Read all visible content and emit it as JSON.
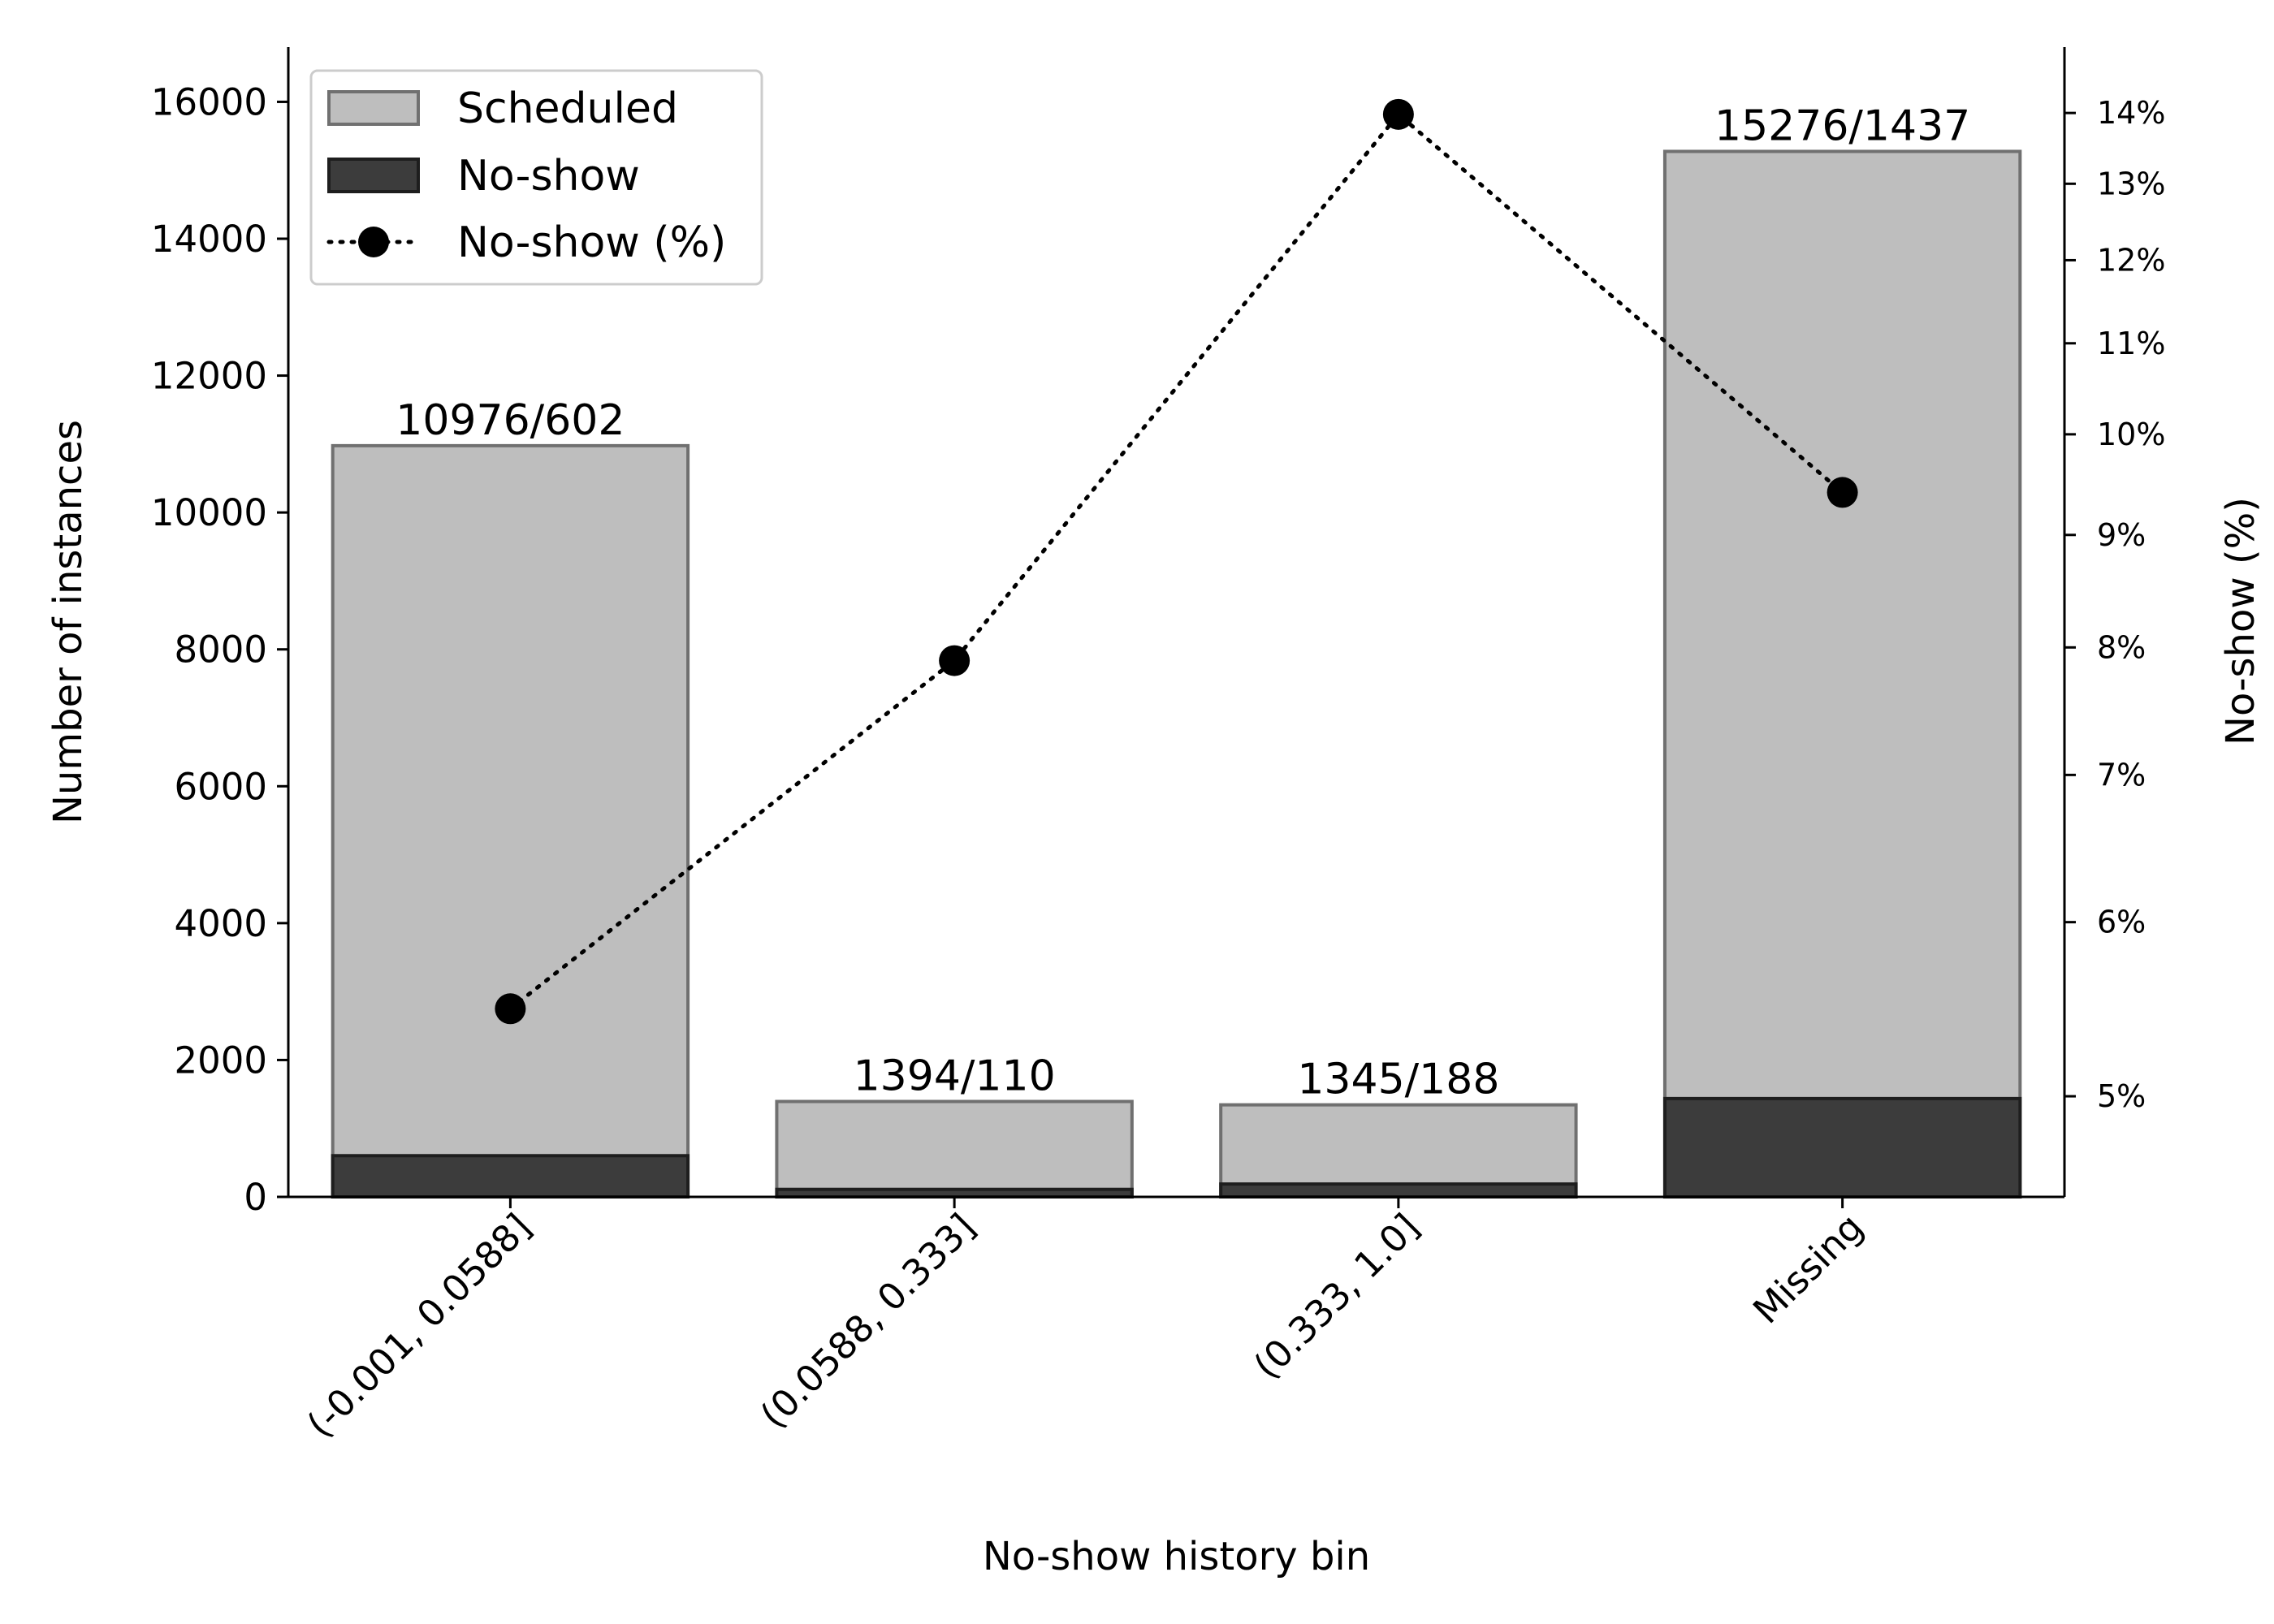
{
  "chart_data": {
    "type": "bar",
    "xlabel": "No-show history bin",
    "ylabel": "Number of instances",
    "y2label": "No-show (%)",
    "categories": [
      "(-0.001, 0.0588]",
      "(0.0588, 0.333]",
      "(0.333, 1.0]",
      "Missing"
    ],
    "ylim": [
      0,
      16800
    ],
    "yticks": [
      0,
      2000,
      4000,
      6000,
      8000,
      10000,
      12000,
      14000,
      16000
    ],
    "y2_scale": "log",
    "y2lim": [
      4.5,
      15.0
    ],
    "y2ticks": [
      {
        "value": 5,
        "label": "5%"
      },
      {
        "value": 6,
        "label": "6%"
      },
      {
        "value": 7,
        "label": "7%"
      },
      {
        "value": 8,
        "label": "8%"
      },
      {
        "value": 9,
        "label": "9%"
      },
      {
        "value": 10,
        "label": "10%"
      },
      {
        "value": 11,
        "label": "11%"
      },
      {
        "value": 12,
        "label": "12%"
      },
      {
        "value": 13,
        "label": "13%"
      },
      {
        "value": 14,
        "label": "14%"
      }
    ],
    "series": [
      {
        "name": "Scheduled",
        "kind": "bar",
        "color": "#bebebe",
        "values": [
          10976,
          1394,
          1345,
          15276
        ]
      },
      {
        "name": "No-show",
        "kind": "bar",
        "color": "#3c3c3c",
        "values": [
          602,
          110,
          188,
          1437
        ]
      },
      {
        "name": "No-show (%)",
        "kind": "line",
        "axis": "right",
        "style": "dotted",
        "color": "#000000",
        "values": [
          5.48,
          7.89,
          13.98,
          9.41
        ]
      }
    ],
    "bar_labels": [
      "10976/602",
      "1394/110",
      "1345/188",
      "15276/1437"
    ],
    "legend": {
      "position": "top-left",
      "entries": [
        "Scheduled",
        "No-show",
        "No-show (%)"
      ]
    },
    "grid": false
  }
}
